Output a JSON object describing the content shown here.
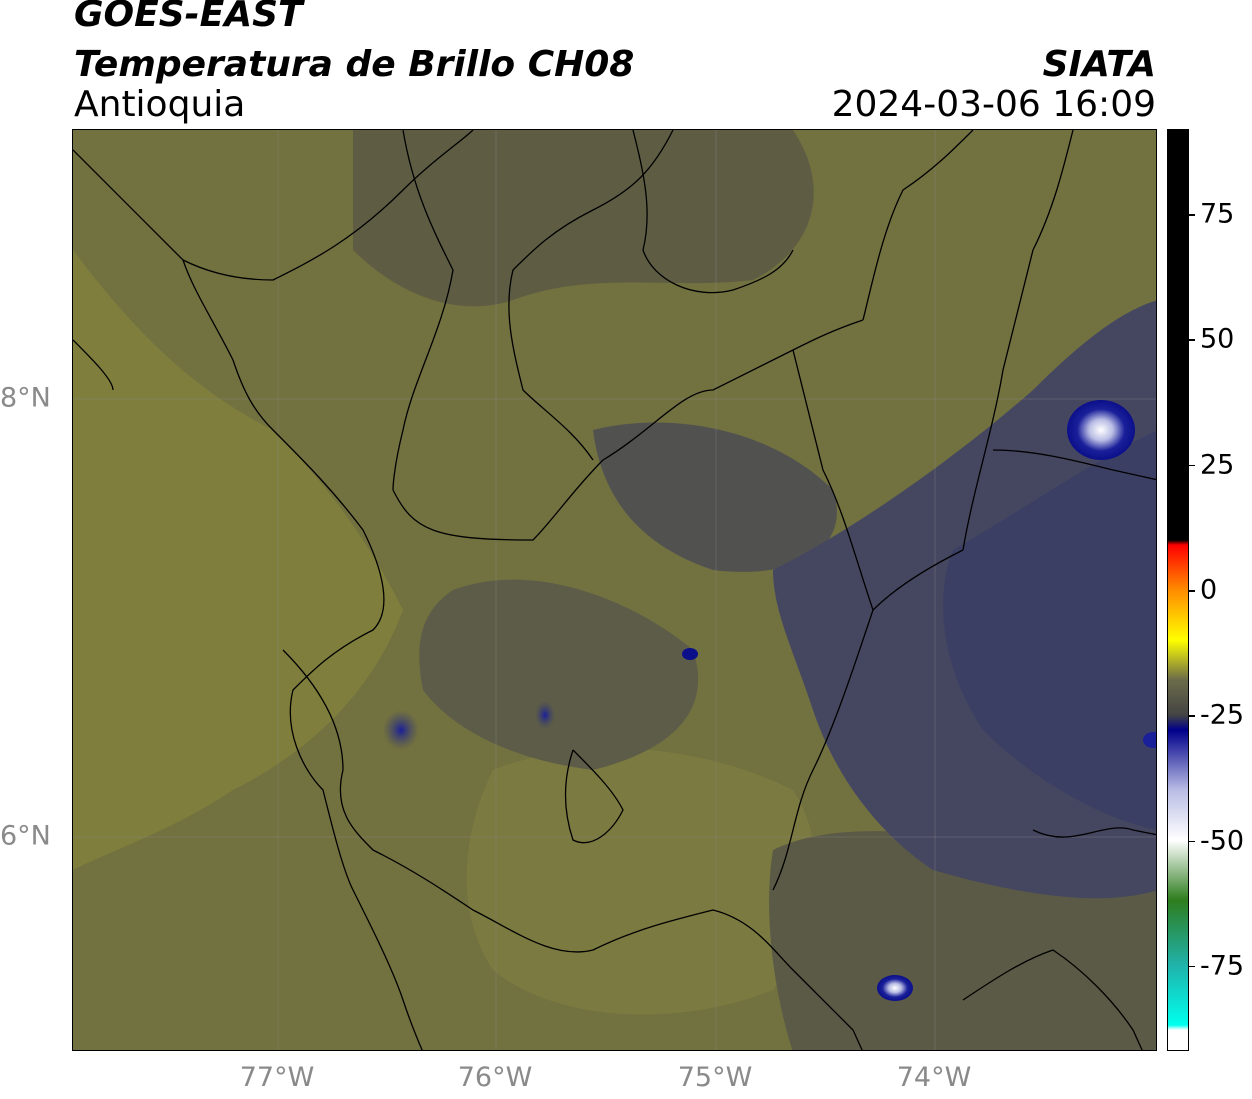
{
  "header": {
    "title_line1": "GOES-EAST",
    "title_line2": "Temperatura de Brillo CH08",
    "region": "Antioquia",
    "source": "SIATA",
    "datetime": "2024-03-06 16:09"
  },
  "map": {
    "lon_ticks": [
      "77°W",
      "76°W",
      "75°W",
      "74°W"
    ],
    "lat_ticks": [
      "8°N",
      "6°N"
    ],
    "colors": {
      "warm_background": "#6f6e3c",
      "mid_tone": "#5b5b45",
      "cold_cloud": "#3c3f64",
      "coldest_cloud": "#0b0f8a",
      "peak": "#ffffff"
    }
  },
  "colorbar": {
    "tick_labels": [
      "75",
      "50",
      "25",
      "0",
      "-25",
      "-50",
      "-75"
    ],
    "ticks": [
      75,
      50,
      25,
      0,
      -25,
      -50,
      -75
    ],
    "range": [
      -92,
      92
    ],
    "stops": [
      {
        "value": 92,
        "color": "#000000"
      },
      {
        "value": 10,
        "color": "#000000"
      },
      {
        "value": 9,
        "color": "#ff0000"
      },
      {
        "value": 0,
        "color": "#ff8c00"
      },
      {
        "value": -10,
        "color": "#ffff00"
      },
      {
        "value": -18,
        "color": "#6b6b4a"
      },
      {
        "value": -25,
        "color": "#444444"
      },
      {
        "value": -28,
        "color": "#00008b"
      },
      {
        "value": -40,
        "color": "#b9bde4"
      },
      {
        "value": -50,
        "color": "#ffffff"
      },
      {
        "value": -62,
        "color": "#2e7d1e"
      },
      {
        "value": -75,
        "color": "#20b2aa"
      },
      {
        "value": -87,
        "color": "#00ffee"
      },
      {
        "value": -88,
        "color": "#ffffff"
      },
      {
        "value": -92,
        "color": "#ffffff"
      }
    ]
  }
}
